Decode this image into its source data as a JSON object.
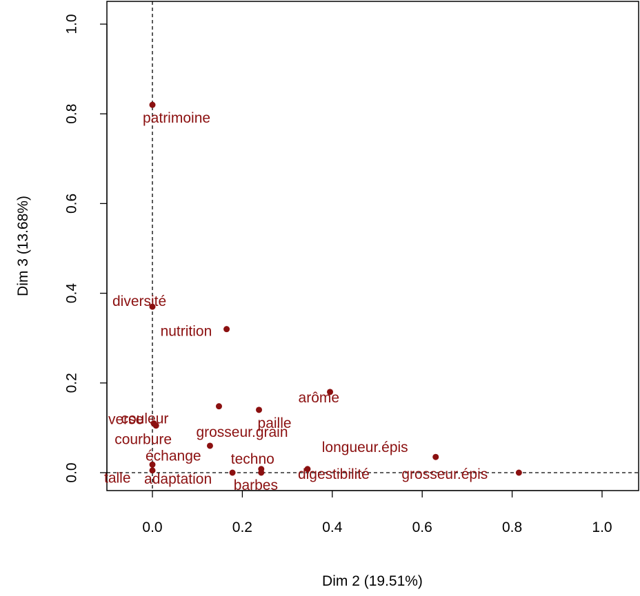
{
  "chart_data": {
    "type": "scatter",
    "xlabel": "Dim 2 (19.51%)",
    "ylabel": "Dim 3 (13.68%)",
    "xlim": [
      -0.1,
      1.08
    ],
    "ylim": [
      -0.04,
      1.04
    ],
    "x_ticks": [
      "0.0",
      "0.2",
      "0.4",
      "0.6",
      "0.8",
      "1.0"
    ],
    "y_ticks": [
      "0.0",
      "0.2",
      "0.4",
      "0.6",
      "0.8",
      "1.0"
    ],
    "reference_lines": {
      "x": 0,
      "y": 0,
      "style": "dashed"
    },
    "point_color": "#8b1010",
    "points": [
      {
        "label": "patrimoine",
        "x": 0.0,
        "y": 0.82
      },
      {
        "label": "diversité",
        "x": 0.0,
        "y": 0.37
      },
      {
        "label": "nutrition",
        "x": 0.165,
        "y": 0.32
      },
      {
        "label": "arôme",
        "x": 0.395,
        "y": 0.18
      },
      {
        "label": "couleur",
        "x": 0.148,
        "y": 0.148
      },
      {
        "label": "paille",
        "x": 0.237,
        "y": 0.14
      },
      {
        "label": "verse",
        "x": 0.003,
        "y": 0.11
      },
      {
        "label": "courbure",
        "x": 0.008,
        "y": 0.105
      },
      {
        "label": "grosseur.grain",
        "x": 0.128,
        "y": 0.06
      },
      {
        "label": "longueur.épis",
        "x": 0.63,
        "y": 0.035
      },
      {
        "label": "échange",
        "x": 0.0,
        "y": 0.018
      },
      {
        "label": "techno",
        "x": 0.242,
        "y": 0.008
      },
      {
        "label": "talle",
        "x": 0.0,
        "y": 0.005
      },
      {
        "label": "adaptation",
        "x": 0.178,
        "y": 0.0
      },
      {
        "label": "barbes",
        "x": 0.242,
        "y": 0.0
      },
      {
        "label": "digestibilité",
        "x": 0.345,
        "y": 0.008
      },
      {
        "label": "grosseur.épis",
        "x": 0.815,
        "y": 0.0
      }
    ]
  }
}
